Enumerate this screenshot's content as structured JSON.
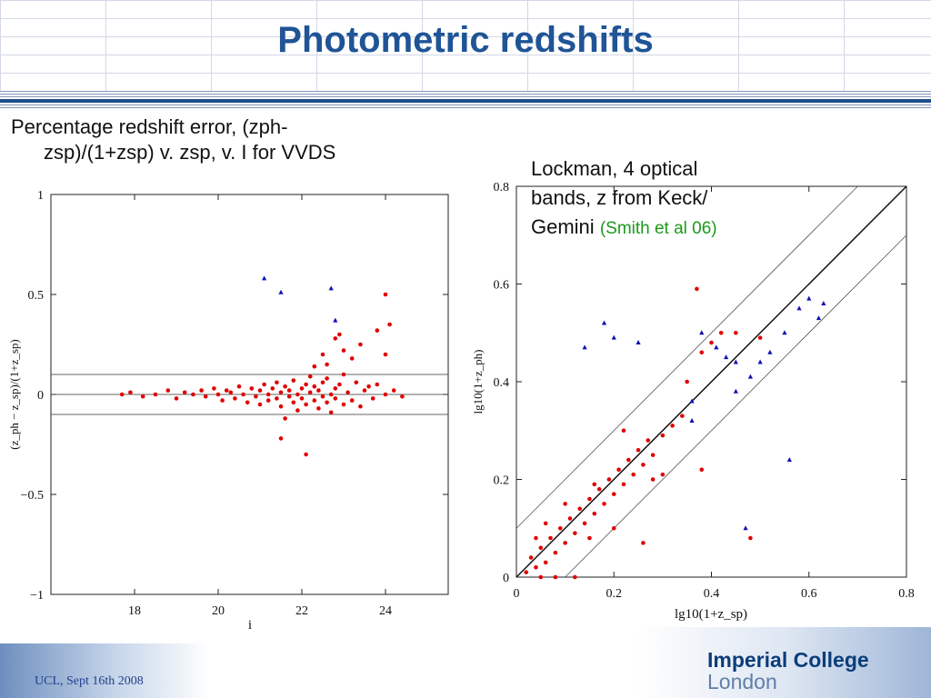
{
  "slide": {
    "title": "Photometric redshifts",
    "left_caption_line1": "Percentage redshift error, (zph-",
    "left_caption_line2": "zsp)/(1+zsp) v. zsp, v. I for VVDS",
    "right_caption_line1": "Lockman, 4 optical",
    "right_caption_line2": "bands, z from Keck/",
    "right_caption_line3": "Gemini",
    "right_caption_ref": "(Smith et al 06)",
    "footer": "UCL, Sept 16th 2008",
    "logo_line1": "Imperial College",
    "logo_line2": "London",
    "colors": {
      "title": "#1f5496",
      "red_points": "#e00000",
      "blue_points": "#1010b0",
      "ref_text": "#1a9a1a"
    }
  },
  "chart_data": [
    {
      "type": "scatter",
      "title": "",
      "xlabel": "i",
      "ylabel": "(z_ph − z_sp)/(1+z_sp)",
      "xlim": [
        16.0,
        25.5
      ],
      "ylim": [
        -1,
        1
      ],
      "x_ticks": [
        18,
        20,
        22,
        24
      ],
      "y_ticks": [
        -1,
        -0.5,
        0,
        0.5,
        1
      ],
      "x_tick_labels": [
        "18",
        "20",
        "22",
        "24"
      ],
      "y_tick_labels": [
        "−1",
        "−0.5",
        "0",
        "0.5",
        "1"
      ],
      "reference_lines_y": [
        0.1,
        0,
        -0.1
      ],
      "grid": false,
      "series": [
        {
          "marker": "circle",
          "color": "#e00000",
          "points": [
            [
              17.7,
              0.0
            ],
            [
              17.9,
              0.01
            ],
            [
              18.2,
              -0.01
            ],
            [
              18.5,
              0.0
            ],
            [
              18.8,
              0.02
            ],
            [
              19.0,
              -0.02
            ],
            [
              19.2,
              0.01
            ],
            [
              19.4,
              0.0
            ],
            [
              19.6,
              0.02
            ],
            [
              19.7,
              -0.01
            ],
            [
              19.9,
              0.03
            ],
            [
              20.0,
              0.0
            ],
            [
              20.1,
              -0.03
            ],
            [
              20.2,
              0.02
            ],
            [
              20.3,
              0.01
            ],
            [
              20.4,
              -0.02
            ],
            [
              20.5,
              0.04
            ],
            [
              20.6,
              0.0
            ],
            [
              20.7,
              -0.04
            ],
            [
              20.8,
              0.03
            ],
            [
              20.9,
              -0.01
            ],
            [
              21.0,
              0.02
            ],
            [
              21.0,
              -0.05
            ],
            [
              21.1,
              0.05
            ],
            [
              21.2,
              0.0
            ],
            [
              21.2,
              -0.03
            ],
            [
              21.3,
              0.03
            ],
            [
              21.4,
              -0.02
            ],
            [
              21.4,
              0.06
            ],
            [
              21.5,
              0.01
            ],
            [
              21.5,
              -0.06
            ],
            [
              21.6,
              0.04
            ],
            [
              21.7,
              -0.01
            ],
            [
              21.7,
              0.02
            ],
            [
              21.8,
              -0.04
            ],
            [
              21.8,
              0.07
            ],
            [
              21.9,
              0.0
            ],
            [
              21.9,
              -0.08
            ],
            [
              22.0,
              0.03
            ],
            [
              22.0,
              -0.02
            ],
            [
              22.1,
              0.05
            ],
            [
              22.1,
              -0.05
            ],
            [
              22.2,
              0.01
            ],
            [
              22.2,
              0.09
            ],
            [
              22.3,
              -0.03
            ],
            [
              22.3,
              0.04
            ],
            [
              22.4,
              -0.07
            ],
            [
              22.4,
              0.02
            ],
            [
              22.5,
              0.06
            ],
            [
              22.5,
              -0.01
            ],
            [
              22.6,
              -0.04
            ],
            [
              22.6,
              0.08
            ],
            [
              22.7,
              0.0
            ],
            [
              22.7,
              -0.09
            ],
            [
              22.8,
              0.03
            ],
            [
              22.8,
              -0.02
            ],
            [
              22.9,
              0.05
            ],
            [
              23.0,
              -0.05
            ],
            [
              23.0,
              0.1
            ],
            [
              23.1,
              0.01
            ],
            [
              23.2,
              -0.03
            ],
            [
              23.3,
              0.06
            ],
            [
              23.4,
              -0.06
            ],
            [
              23.5,
              0.02
            ],
            [
              23.6,
              0.04
            ],
            [
              23.7,
              -0.02
            ],
            [
              23.8,
              0.05
            ],
            [
              24.0,
              0.0
            ],
            [
              24.2,
              0.02
            ],
            [
              24.4,
              -0.01
            ],
            [
              22.5,
              0.2
            ],
            [
              22.6,
              0.15
            ],
            [
              22.8,
              0.28
            ],
            [
              23.0,
              0.22
            ],
            [
              23.2,
              0.18
            ],
            [
              23.4,
              0.25
            ],
            [
              23.8,
              0.32
            ],
            [
              24.0,
              0.2
            ],
            [
              24.0,
              0.5
            ],
            [
              24.1,
              0.35
            ],
            [
              22.3,
              0.14
            ],
            [
              22.9,
              0.3
            ],
            [
              21.6,
              -0.12
            ],
            [
              22.1,
              -0.3
            ],
            [
              21.5,
              -0.22
            ]
          ]
        },
        {
          "marker": "triangle",
          "color": "#1010b0",
          "points": [
            [
              21.1,
              0.58
            ],
            [
              21.5,
              0.51
            ],
            [
              22.7,
              0.53
            ],
            [
              22.8,
              0.37
            ]
          ]
        }
      ]
    },
    {
      "type": "scatter",
      "title": "",
      "xlabel": "lg10(1+z_sp)",
      "ylabel": "lg10(1+z_ph)",
      "xlim": [
        0,
        0.8
      ],
      "ylim": [
        0,
        0.8
      ],
      "x_ticks": [
        0,
        0.2,
        0.4,
        0.6,
        0.8
      ],
      "y_ticks": [
        0,
        0.2,
        0.4,
        0.6,
        0.8
      ],
      "x_tick_labels": [
        "0",
        "0.2",
        "0.4",
        "0.6",
        "0.8"
      ],
      "y_tick_labels": [
        "0",
        "0.2",
        "0.4",
        "0.6",
        "0.8"
      ],
      "reference_lines": [
        "y = x",
        "y = x + 0.1",
        "y = x − 0.1"
      ],
      "grid": false,
      "series": [
        {
          "marker": "circle",
          "color": "#e00000",
          "points": [
            [
              0.02,
              0.01
            ],
            [
              0.03,
              0.04
            ],
            [
              0.04,
              0.02
            ],
            [
              0.05,
              0.06
            ],
            [
              0.06,
              0.03
            ],
            [
              0.07,
              0.08
            ],
            [
              0.08,
              0.05
            ],
            [
              0.09,
              0.1
            ],
            [
              0.1,
              0.07
            ],
            [
              0.11,
              0.12
            ],
            [
              0.12,
              0.09
            ],
            [
              0.13,
              0.14
            ],
            [
              0.14,
              0.11
            ],
            [
              0.15,
              0.16
            ],
            [
              0.16,
              0.13
            ],
            [
              0.17,
              0.18
            ],
            [
              0.18,
              0.15
            ],
            [
              0.19,
              0.2
            ],
            [
              0.2,
              0.17
            ],
            [
              0.21,
              0.22
            ],
            [
              0.22,
              0.19
            ],
            [
              0.23,
              0.24
            ],
            [
              0.24,
              0.21
            ],
            [
              0.25,
              0.26
            ],
            [
              0.26,
              0.23
            ],
            [
              0.27,
              0.28
            ],
            [
              0.28,
              0.25
            ],
            [
              0.3,
              0.29
            ],
            [
              0.32,
              0.31
            ],
            [
              0.34,
              0.33
            ],
            [
              0.05,
              0.0
            ],
            [
              0.08,
              0.0
            ],
            [
              0.12,
              0.0
            ],
            [
              0.04,
              0.08
            ],
            [
              0.1,
              0.15
            ],
            [
              0.15,
              0.08
            ],
            [
              0.2,
              0.1
            ],
            [
              0.22,
              0.3
            ],
            [
              0.35,
              0.4
            ],
            [
              0.38,
              0.46
            ],
            [
              0.4,
              0.48
            ],
            [
              0.42,
              0.5
            ],
            [
              0.38,
              0.22
            ],
            [
              0.3,
              0.21
            ],
            [
              0.26,
              0.07
            ],
            [
              0.28,
              0.2
            ],
            [
              0.37,
              0.59
            ],
            [
              0.45,
              0.5
            ],
            [
              0.5,
              0.49
            ],
            [
              0.48,
              0.08
            ],
            [
              0.16,
              0.19
            ],
            [
              0.06,
              0.11
            ]
          ]
        },
        {
          "marker": "triangle",
          "color": "#1010b0",
          "points": [
            [
              0.14,
              0.47
            ],
            [
              0.18,
              0.52
            ],
            [
              0.2,
              0.49
            ],
            [
              0.25,
              0.48
            ],
            [
              0.36,
              0.36
            ],
            [
              0.38,
              0.5
            ],
            [
              0.41,
              0.47
            ],
            [
              0.43,
              0.45
            ],
            [
              0.45,
              0.44
            ],
            [
              0.48,
              0.41
            ],
            [
              0.5,
              0.44
            ],
            [
              0.52,
              0.46
            ],
            [
              0.55,
              0.5
            ],
            [
              0.58,
              0.55
            ],
            [
              0.62,
              0.53
            ],
            [
              0.6,
              0.57
            ],
            [
              0.63,
              0.56
            ],
            [
              0.56,
              0.24
            ],
            [
              0.47,
              0.1
            ],
            [
              0.36,
              0.32
            ],
            [
              0.45,
              0.38
            ]
          ]
        }
      ]
    }
  ]
}
